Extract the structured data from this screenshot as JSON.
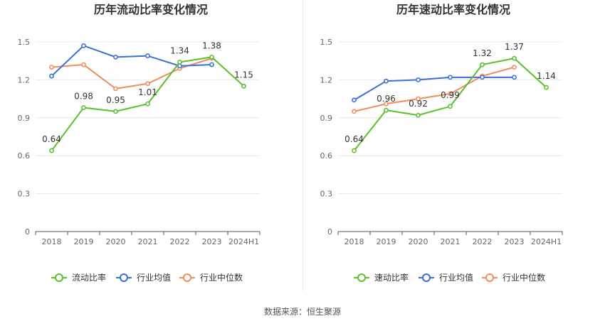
{
  "footer": "数据来源：恒生聚源",
  "colors": {
    "company": "#5ac02b",
    "average": "#3a6fd8",
    "median": "#f08c60"
  },
  "chart_data": [
    {
      "type": "line",
      "title": "历年流动比率变化情况",
      "categories": [
        "2018",
        "2019",
        "2020",
        "2021",
        "2022",
        "2023",
        "2024H1"
      ],
      "yticks": [
        0,
        0.3,
        0.6,
        0.9,
        1.2,
        1.5
      ],
      "ylim": [
        0,
        1.5
      ],
      "grid": true,
      "legend": "bottom",
      "series": [
        {
          "name": "流动比率",
          "key": "company",
          "values": [
            0.64,
            0.98,
            0.95,
            1.01,
            1.34,
            1.38,
            1.15
          ],
          "labels": [
            "0.64",
            "0.98",
            "0.95",
            "1.01",
            "1.34",
            "1.38",
            "1.15"
          ]
        },
        {
          "name": "行业均值",
          "key": "average",
          "values": [
            1.23,
            1.47,
            1.38,
            1.39,
            1.31,
            1.32,
            null
          ]
        },
        {
          "name": "行业中位数",
          "key": "median",
          "values": [
            1.3,
            1.32,
            1.13,
            1.17,
            1.29,
            1.37,
            null
          ]
        }
      ]
    },
    {
      "type": "line",
      "title": "历年速动比率变化情况",
      "categories": [
        "2018",
        "2019",
        "2020",
        "2021",
        "2022",
        "2023",
        "2024H1"
      ],
      "yticks": [
        0,
        0.3,
        0.6,
        0.9,
        1.2,
        1.5
      ],
      "ylim": [
        0,
        1.5
      ],
      "grid": true,
      "legend": "bottom",
      "series": [
        {
          "name": "速动比率",
          "key": "company",
          "values": [
            0.64,
            0.96,
            0.92,
            0.99,
            1.32,
            1.37,
            1.14
          ],
          "labels": [
            "0.64",
            "0.96",
            "0.92",
            "0.99",
            "1.32",
            "1.37",
            "1.14"
          ]
        },
        {
          "name": "行业均值",
          "key": "average",
          "values": [
            1.04,
            1.19,
            1.2,
            1.22,
            1.22,
            1.22,
            null
          ]
        },
        {
          "name": "行业中位数",
          "key": "median",
          "values": [
            0.95,
            1.01,
            1.05,
            1.09,
            1.23,
            1.3,
            null
          ]
        }
      ]
    }
  ]
}
